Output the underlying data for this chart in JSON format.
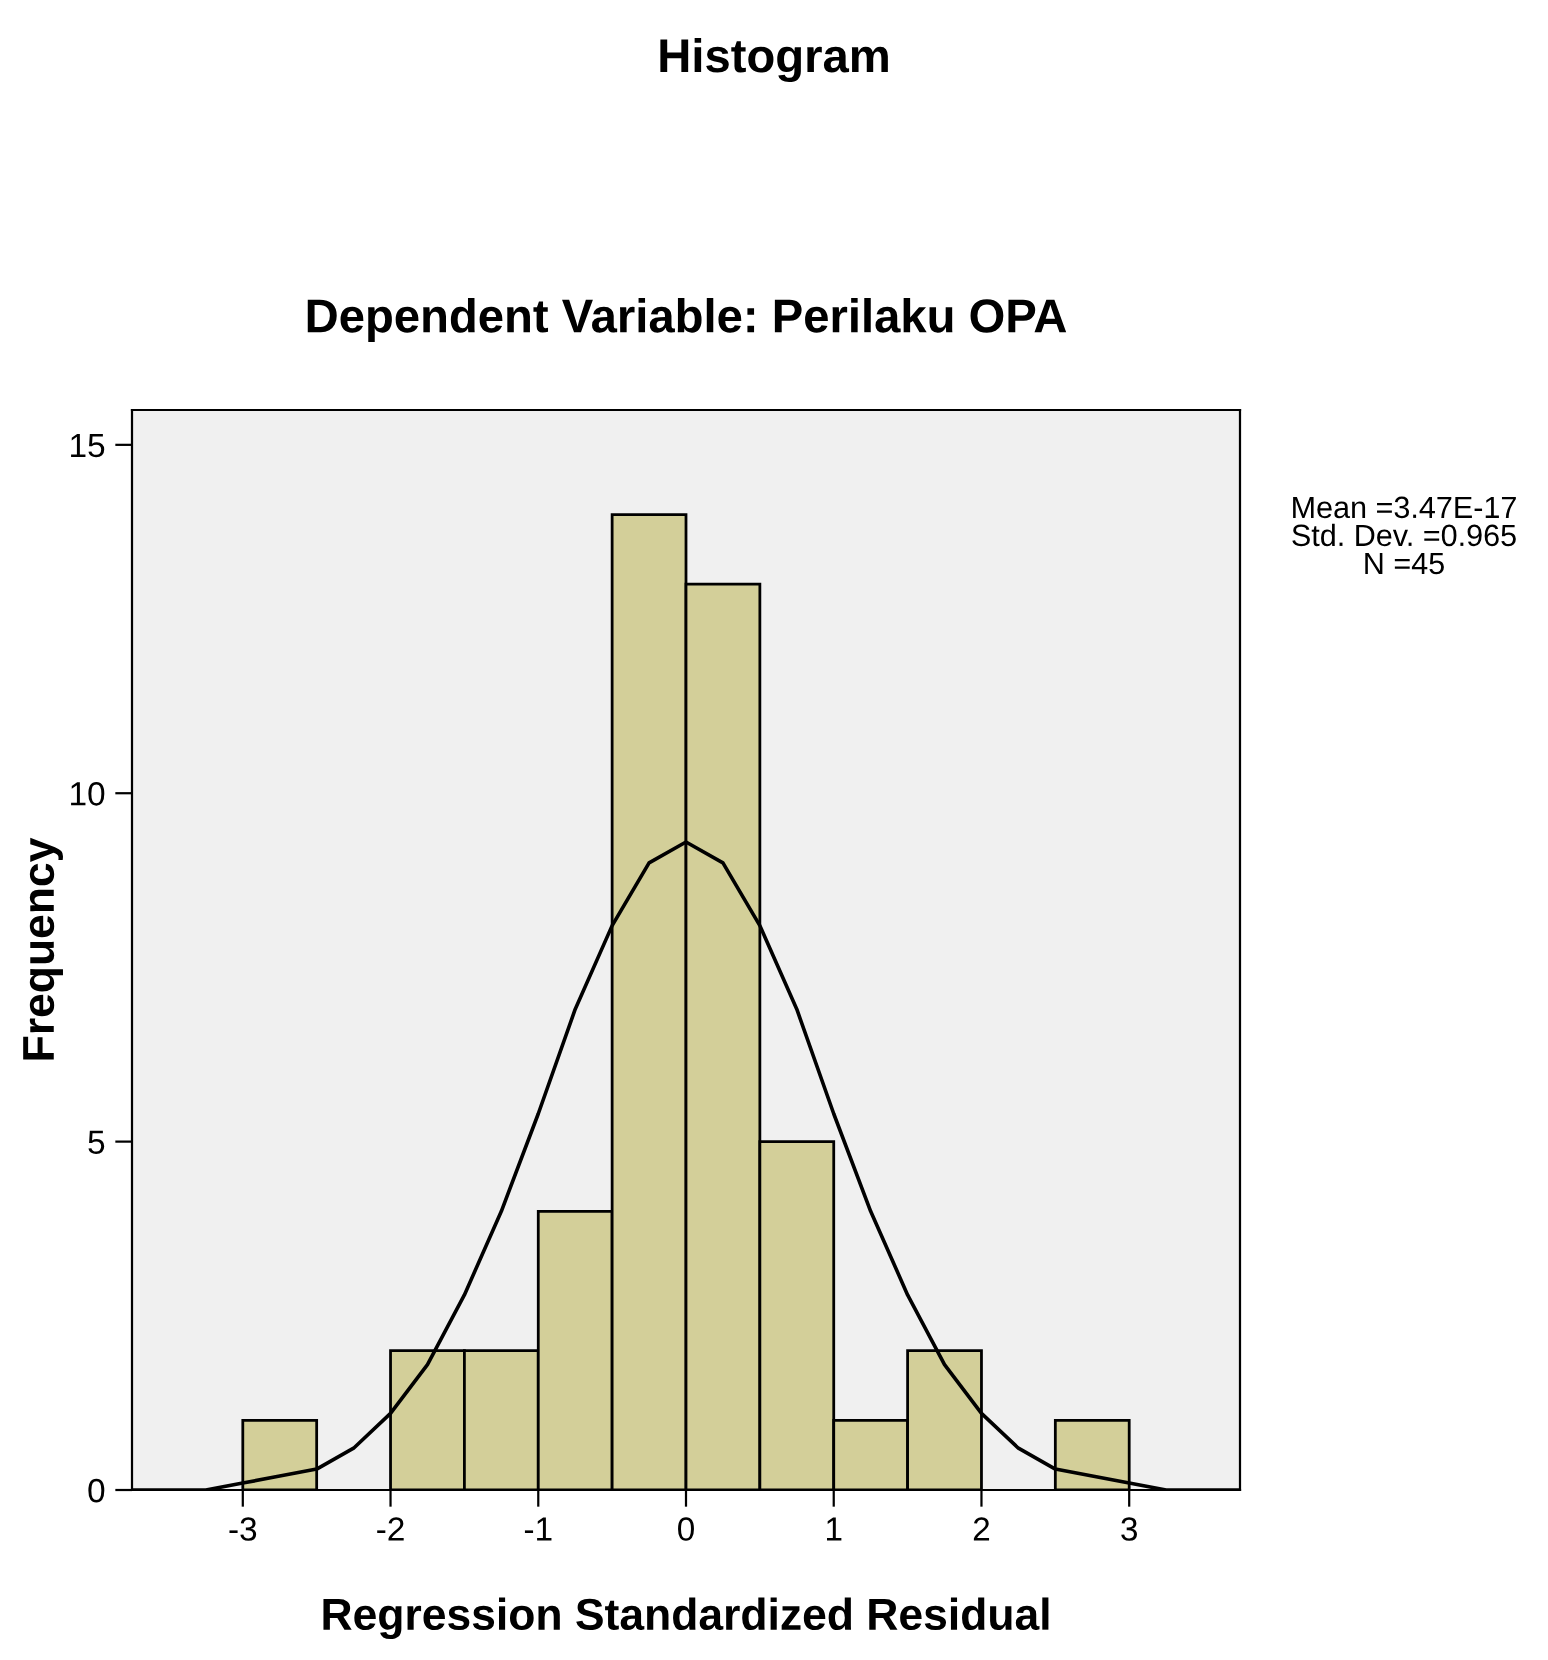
{
  "chart_data": {
    "type": "histogram",
    "title": "Histogram",
    "subtitle": "Dependent Variable: Perilaku OPA",
    "xlabel": "Regression Standardized Residual",
    "ylabel": "Frequency",
    "bins": [
      -3,
      -2.5,
      -2,
      -1.5,
      -1,
      -0.5,
      0,
      0.5,
      1,
      1.5,
      2,
      2.5,
      3
    ],
    "series": [
      {
        "color": "#d3cf99",
        "values": [
          1,
          0,
          2,
          2,
          4,
          14,
          13,
          5,
          1,
          2,
          0,
          1
        ]
      },
      {
        "type": "line",
        "color": "#000000",
        "x": [
          -3.75,
          -3.5,
          -3.25,
          -3,
          -2.75,
          -2.5,
          -2.25,
          -2,
          -1.75,
          -1.5,
          -1.25,
          -1,
          -0.75,
          -0.5,
          -0.25,
          0,
          0.25,
          0.5,
          0.75,
          1,
          1.25,
          1.5,
          1.75,
          2,
          2.25,
          2.5,
          2.75,
          3,
          3.25,
          3.5,
          3.75
        ],
        "values": [
          0.0,
          0.0,
          0.0,
          0.1,
          0.2,
          0.3,
          0.6,
          1.1,
          1.8,
          2.8,
          4.0,
          5.4,
          6.9,
          8.1,
          9.0,
          9.3,
          9.0,
          8.1,
          6.9,
          5.4,
          4.0,
          2.8,
          1.8,
          1.1,
          0.6,
          0.3,
          0.2,
          0.1,
          0.0,
          0.0,
          0.0
        ]
      }
    ],
    "xlim": [
      -3.75,
      3.75
    ],
    "ylim": [
      0,
      15.5
    ],
    "xticks": [
      -3,
      -2,
      -1,
      0,
      1,
      2,
      3
    ],
    "yticks": [
      0,
      5,
      10,
      15
    ],
    "grid": false,
    "legend": false,
    "annotations": [
      "Mean =3.47E-17",
      "Std. Dev. =0.965",
      "N =45"
    ]
  }
}
